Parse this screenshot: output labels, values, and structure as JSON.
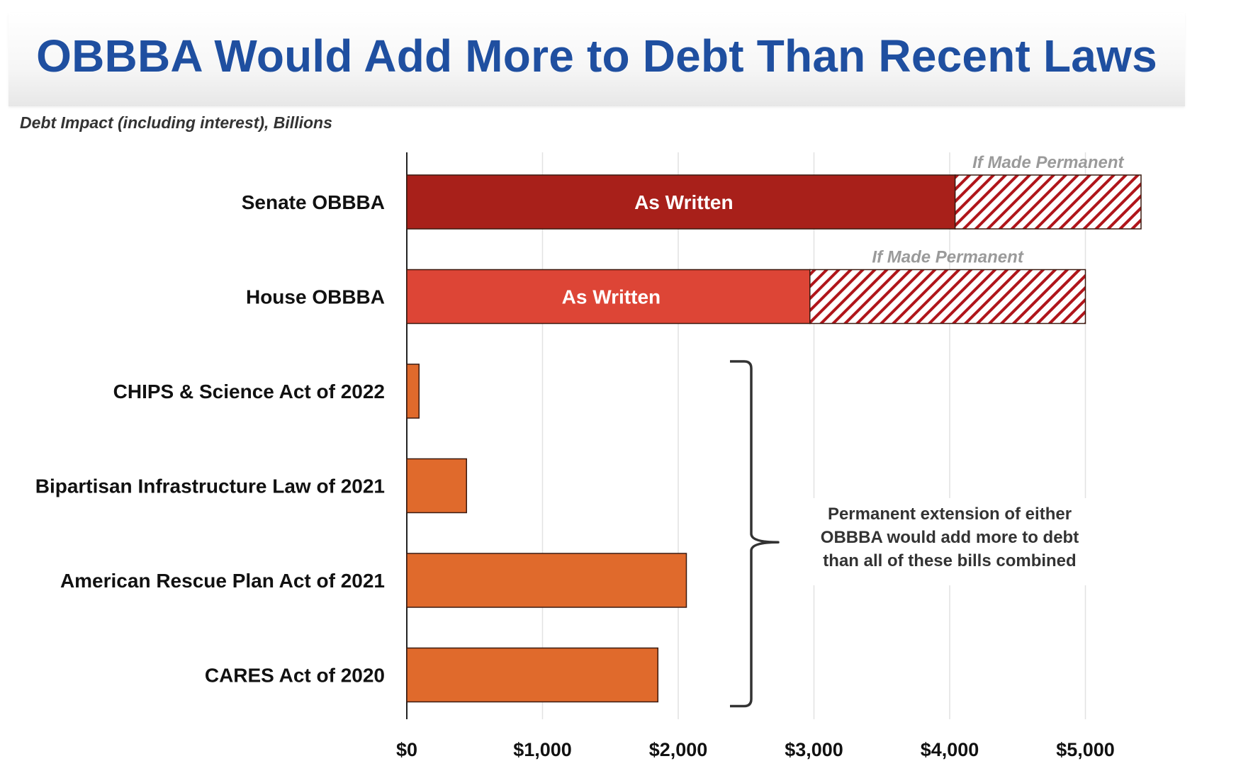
{
  "chart_data": {
    "type": "bar",
    "orientation": "horizontal",
    "stacked": true,
    "title": "OBBBA Would Add More to Debt Than Recent Laws",
    "subtitle": "Debt Impact (including interest), Billions",
    "categories": [
      "Senate OBBBA",
      "House OBBBA",
      "CHIPS & Science Act of 2022",
      "Bipartisan Infrastructure Law of 2021",
      "American Rescue Plan Act of 2021",
      "CARES Act of 2020"
    ],
    "series": [
      {
        "name": "As Written",
        "values": [
          4040,
          2970,
          90,
          440,
          2060,
          1850
        ],
        "colors": [
          "#a8201a",
          "#dd4536",
          "#e06a2c",
          "#e06a2c",
          "#e06a2c",
          "#e06a2c"
        ]
      },
      {
        "name": "If Made Permanent",
        "values": [
          1370,
          2030,
          0,
          0,
          0,
          0
        ],
        "color": "#b0151a",
        "pattern": "hatched"
      }
    ],
    "in_bar_labels": [
      "As Written",
      "As Written"
    ],
    "above_bar_labels": [
      "If Made Permanent",
      "If Made Permanent"
    ],
    "xlim": [
      0,
      5400
    ],
    "xticks": [
      0,
      1000,
      2000,
      3000,
      4000,
      5000
    ],
    "xtick_labels": [
      "$0",
      "$1,000",
      "$2,000",
      "$3,000",
      "$4,000",
      "$5,000"
    ],
    "grid": "vertical",
    "annotation": {
      "bracket_spans": [
        "CHIPS & Science Act of 2022",
        "CARES Act of 2020"
      ],
      "lines": [
        "Permanent extension of either",
        "OBBBA would add more to debt",
        "than all of these bills combined"
      ]
    }
  }
}
